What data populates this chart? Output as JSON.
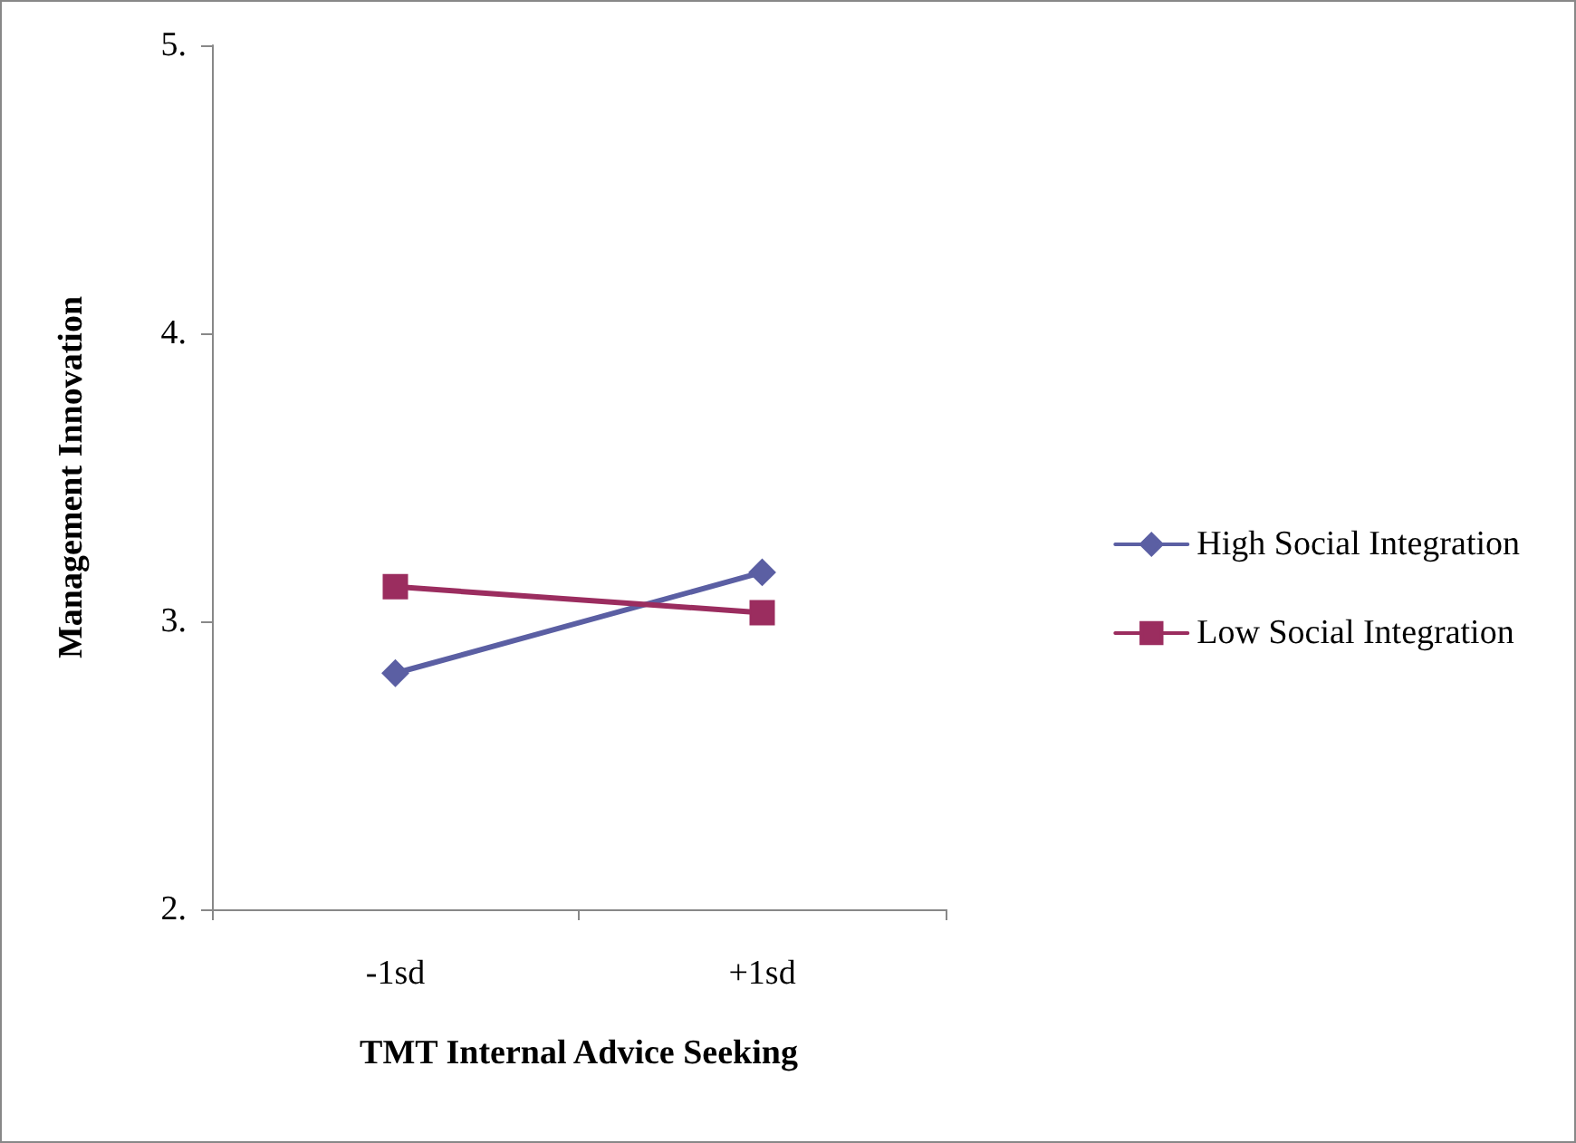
{
  "chart_data": {
    "type": "line",
    "xlabel": "TMT Internal Advice Seeking",
    "ylabel": "Management Innovation",
    "categories": [
      "-1sd",
      "+1sd"
    ],
    "series": [
      {
        "name": "High Social Integration",
        "color": "#5b5fa3",
        "marker": "diamond",
        "values": [
          2.82,
          3.17
        ]
      },
      {
        "name": "Low Social Integration",
        "color": "#9b2d5f",
        "marker": "square",
        "values": [
          3.12,
          3.03
        ]
      }
    ],
    "ylim": [
      2,
      5
    ],
    "yticks": [
      {
        "value": 2,
        "label": "2."
      },
      {
        "value": 3,
        "label": "3."
      },
      {
        "value": 4,
        "label": "4."
      },
      {
        "value": 5,
        "label": "5."
      }
    ],
    "grid": false,
    "legend": "right",
    "line_style": "solid"
  }
}
